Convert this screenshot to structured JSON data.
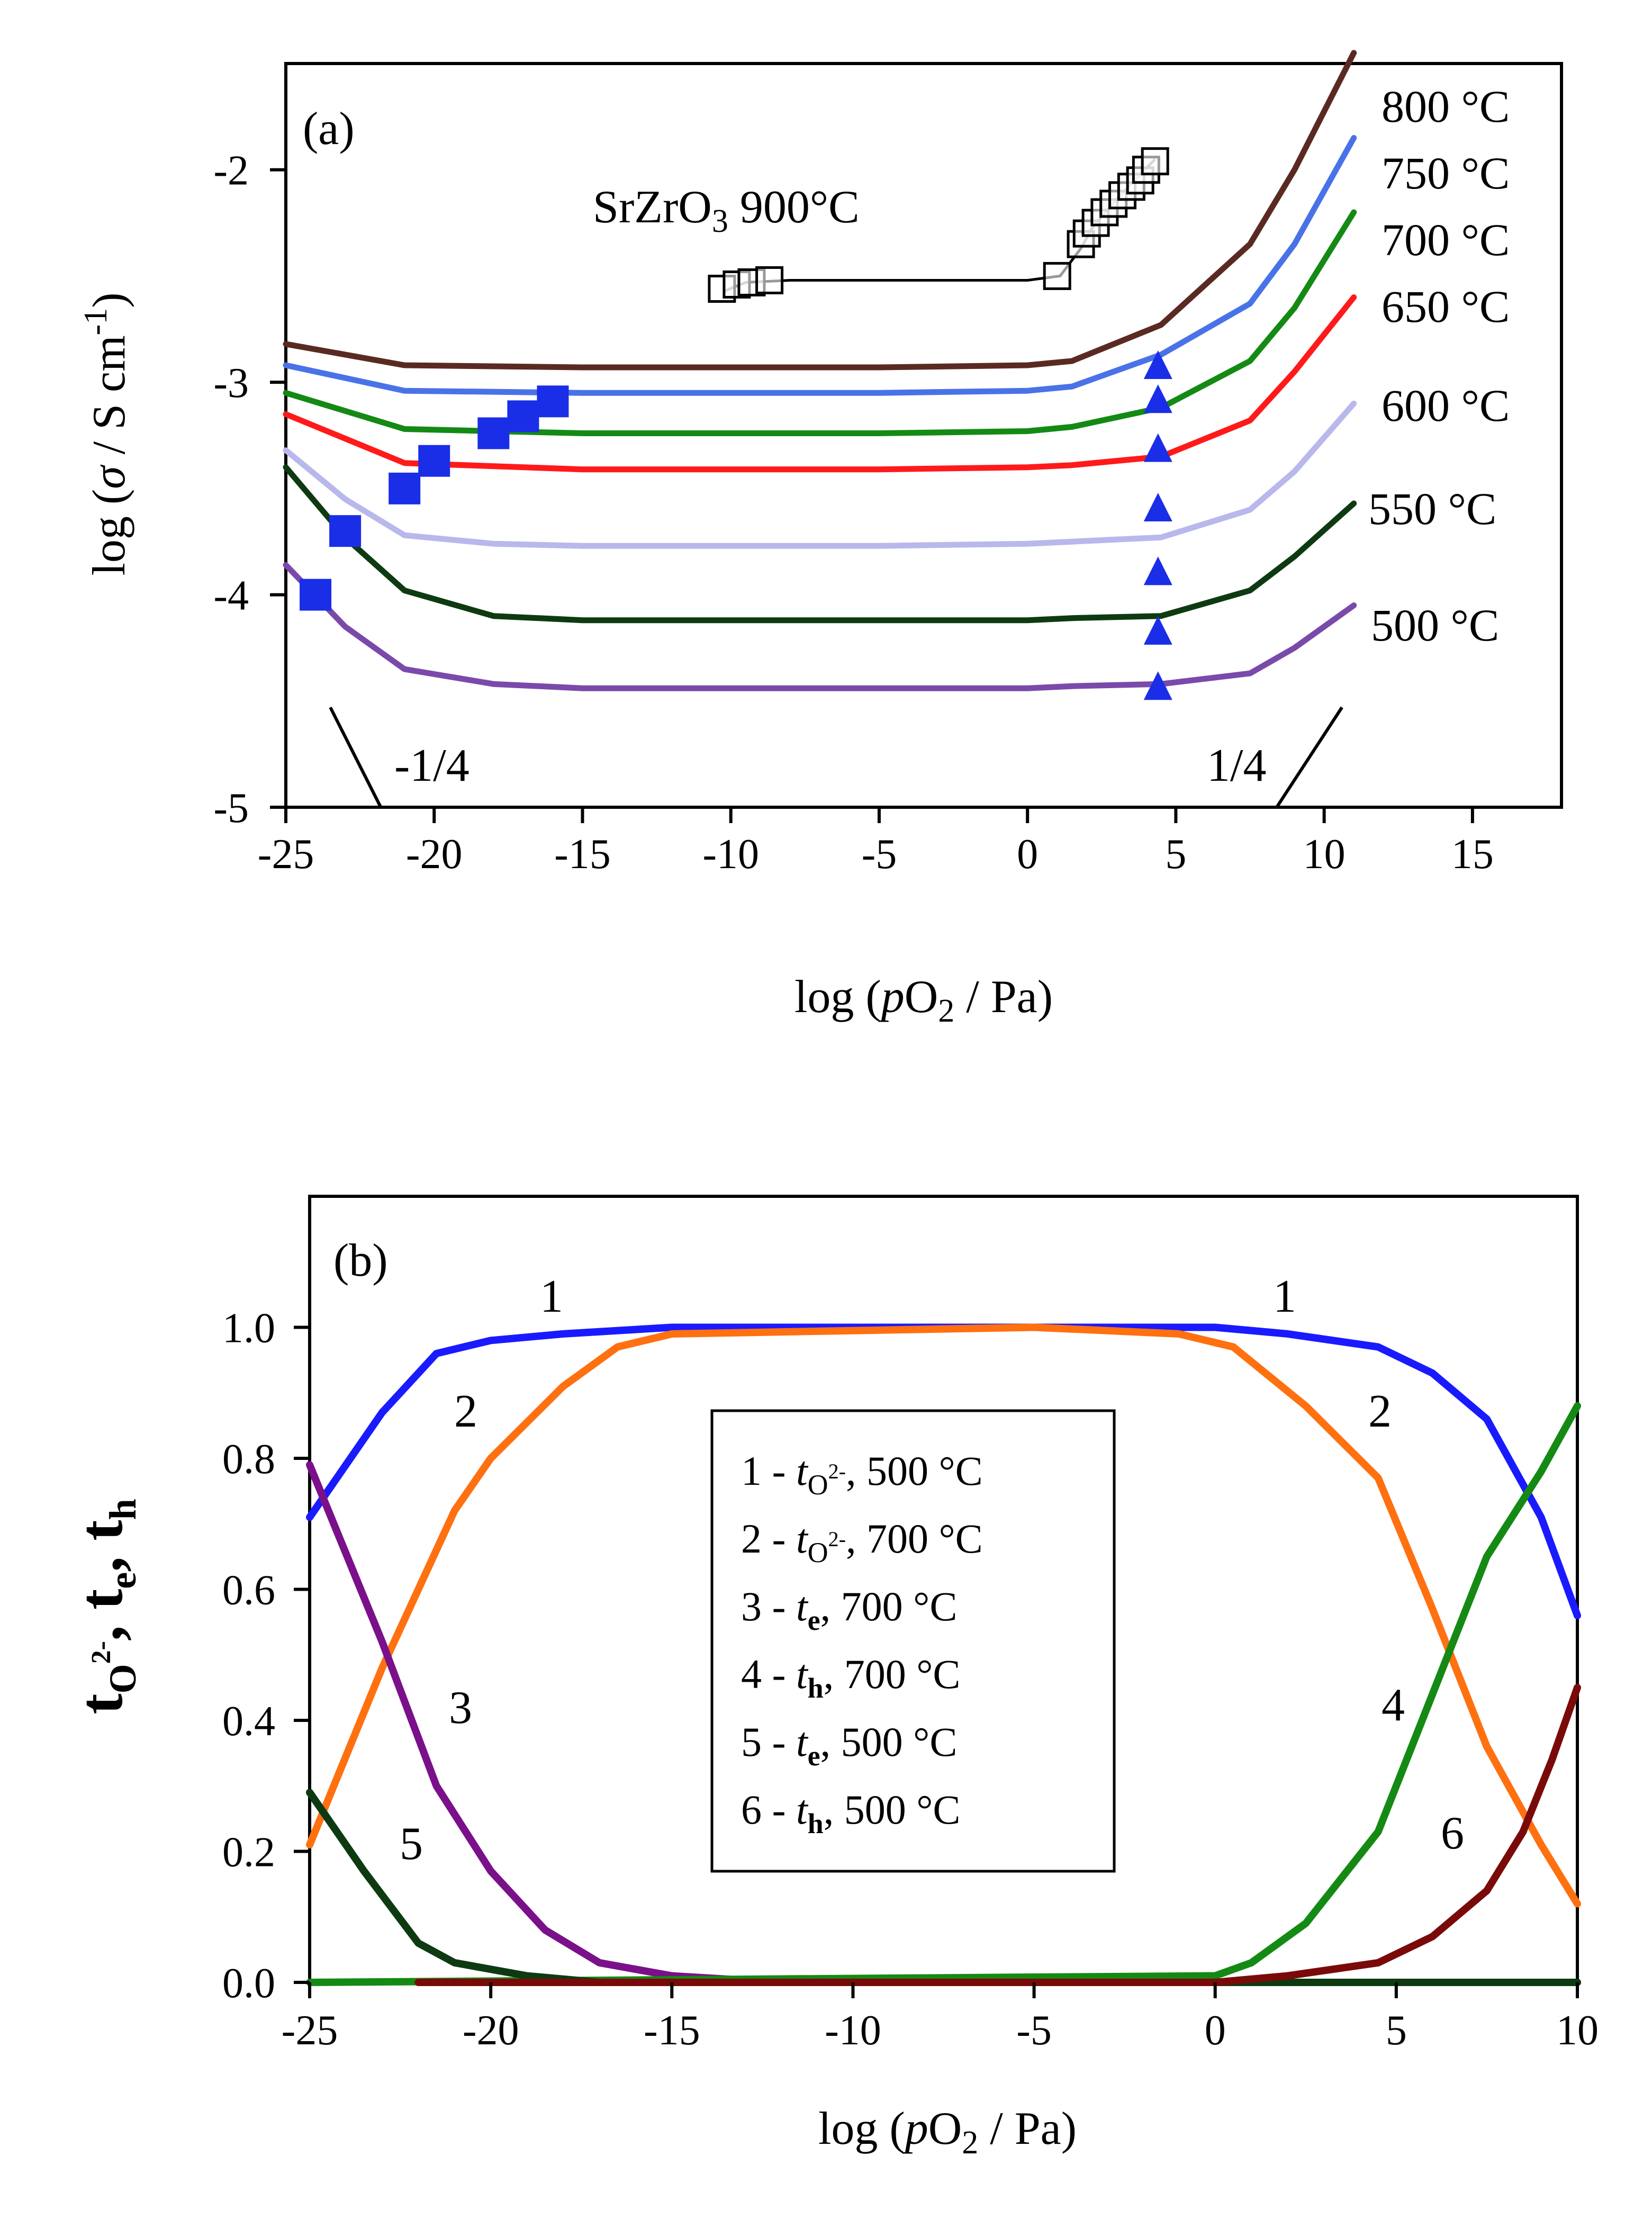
{
  "chart_data": [
    {
      "type": "line",
      "panel": "(a)",
      "xlabel": "log (pO2 / Pa)",
      "ylabel": "log (σ / S cm-1)",
      "xlim": [
        -25,
        18
      ],
      "ylim": [
        -5,
        -1.5
      ],
      "xticks": [
        -25,
        -20,
        -15,
        -10,
        -5,
        0,
        5,
        10,
        15
      ],
      "yticks": [
        -5,
        -4,
        -3,
        -2
      ],
      "series": [
        {
          "name": "800 °C",
          "color": "#5a2a22",
          "points": [
            [
              -25,
              -2.82
            ],
            [
              -21,
              -2.92
            ],
            [
              -15,
              -2.93
            ],
            [
              -5,
              -2.93
            ],
            [
              0,
              -2.92
            ],
            [
              1.5,
              -2.9
            ],
            [
              4.5,
              -2.73
            ],
            [
              7.5,
              -2.35
            ],
            [
              9,
              -2.0
            ],
            [
              11,
              -1.45
            ]
          ]
        },
        {
          "name": "750 °C",
          "color": "#4a72e8",
          "points": [
            [
              -25,
              -2.92
            ],
            [
              -21,
              -3.04
            ],
            [
              -15,
              -3.05
            ],
            [
              -5,
              -3.05
            ],
            [
              0,
              -3.04
            ],
            [
              1.5,
              -3.02
            ],
            [
              4.5,
              -2.87
            ],
            [
              7.5,
              -2.63
            ],
            [
              9,
              -2.35
            ],
            [
              11,
              -1.85
            ]
          ]
        },
        {
          "name": "700 °C",
          "color": "#148a14",
          "points": [
            [
              -25,
              -3.05
            ],
            [
              -21,
              -3.22
            ],
            [
              -15,
              -3.24
            ],
            [
              -5,
              -3.24
            ],
            [
              0,
              -3.23
            ],
            [
              1.5,
              -3.21
            ],
            [
              4.5,
              -3.12
            ],
            [
              7.5,
              -2.9
            ],
            [
              9,
              -2.65
            ],
            [
              11,
              -2.2
            ]
          ]
        },
        {
          "name": "650 °C",
          "color": "#ff1a1a",
          "points": [
            [
              -25,
              -3.15
            ],
            [
              -21,
              -3.38
            ],
            [
              -15,
              -3.41
            ],
            [
              -5,
              -3.41
            ],
            [
              0,
              -3.4
            ],
            [
              1.5,
              -3.39
            ],
            [
              4.5,
              -3.35
            ],
            [
              7.5,
              -3.18
            ],
            [
              9,
              -2.95
            ],
            [
              11,
              -2.6
            ]
          ]
        },
        {
          "name": "600 °C",
          "color": "#b8b8ec",
          "points": [
            [
              -25,
              -3.32
            ],
            [
              -23,
              -3.55
            ],
            [
              -21,
              -3.72
            ],
            [
              -18,
              -3.76
            ],
            [
              -15,
              -3.77
            ],
            [
              -5,
              -3.77
            ],
            [
              0,
              -3.76
            ],
            [
              1.5,
              -3.75
            ],
            [
              4.5,
              -3.73
            ],
            [
              7.5,
              -3.6
            ],
            [
              9,
              -3.42
            ],
            [
              11,
              -3.1
            ]
          ]
        },
        {
          "name": "550 °C",
          "color": "#0e3a12",
          "points": [
            [
              -25,
              -3.4
            ],
            [
              -23,
              -3.73
            ],
            [
              -21,
              -3.98
            ],
            [
              -18,
              -4.1
            ],
            [
              -15,
              -4.12
            ],
            [
              -5,
              -4.12
            ],
            [
              0,
              -4.12
            ],
            [
              1.5,
              -4.11
            ],
            [
              4.5,
              -4.1
            ],
            [
              7.5,
              -3.98
            ],
            [
              9,
              -3.82
            ],
            [
              11,
              -3.57
            ]
          ]
        },
        {
          "name": "500 °C",
          "color": "#7a4aaa",
          "points": [
            [
              -25,
              -3.86
            ],
            [
              -23,
              -4.15
            ],
            [
              -21,
              -4.35
            ],
            [
              -18,
              -4.42
            ],
            [
              -15,
              -4.44
            ],
            [
              -5,
              -4.44
            ],
            [
              0,
              -4.44
            ],
            [
              1.5,
              -4.43
            ],
            [
              4.5,
              -4.42
            ],
            [
              7.5,
              -4.37
            ],
            [
              9,
              -4.25
            ],
            [
              11,
              -4.05
            ]
          ]
        }
      ],
      "annotations": {
        "srzro3_label": "SrZrO3 900°C",
        "srzro3_points": [
          [
            -10.3,
            -2.56
          ],
          [
            -9.8,
            -2.54
          ],
          [
            -9.3,
            -2.53
          ],
          [
            -8.7,
            -2.52
          ],
          [
            1,
            -2.5
          ],
          [
            1.8,
            -2.35
          ],
          [
            2.0,
            -2.3
          ],
          [
            2.3,
            -2.25
          ],
          [
            2.6,
            -2.2
          ],
          [
            2.9,
            -2.16
          ],
          [
            3.2,
            -2.12
          ],
          [
            3.5,
            -2.08
          ],
          [
            3.8,
            -2.05
          ],
          [
            4.0,
            -2.0
          ],
          [
            4.3,
            -1.96
          ]
        ],
        "srzro3_line": [
          [
            -10.2,
            -2.57
          ],
          [
            -9.5,
            -2.53
          ],
          [
            -8,
            -2.52
          ],
          [
            0,
            -2.52
          ],
          [
            1.1,
            -2.5
          ],
          [
            1.8,
            -2.37
          ],
          [
            2.2,
            -2.27
          ],
          [
            3,
            -2.14
          ],
          [
            4.3,
            -1.95
          ]
        ],
        "squares": [
          [
            -24,
            -4.0
          ],
          [
            -23,
            -3.7
          ],
          [
            -21,
            -3.5
          ],
          [
            -20,
            -3.37
          ],
          [
            -18,
            -3.24
          ],
          [
            -17,
            -3.16
          ],
          [
            -16,
            -3.09
          ]
        ],
        "triangles": [
          [
            4.4,
            -2.93
          ],
          [
            4.4,
            -3.09
          ],
          [
            4.4,
            -3.32
          ],
          [
            4.4,
            -3.6
          ],
          [
            4.4,
            -3.9
          ],
          [
            4.4,
            -4.18
          ],
          [
            4.4,
            -4.44
          ]
        ],
        "slope_neg_label": "-1/4",
        "slope_pos_label": "1/4",
        "slope_neg": [
          [
            -23.5,
            -4.53
          ],
          [
            -21.8,
            -5.0
          ]
        ],
        "slope_pos": [
          [
            8.4,
            -5.0
          ],
          [
            10.6,
            -4.53
          ]
        ]
      }
    },
    {
      "type": "line",
      "panel": "(b)",
      "xlabel": "log (pO2 / Pa)",
      "ylabel": "tO2-, te, th",
      "xlim": [
        -25,
        10
      ],
      "ylim": [
        0,
        1.2
      ],
      "xticks": [
        -25,
        -20,
        -15,
        -10,
        -5,
        0,
        5,
        10
      ],
      "yticks": [
        0.0,
        0.2,
        0.4,
        0.6,
        0.8,
        1.0
      ],
      "ytick_labels": [
        "0.0",
        "0.2",
        "0.4",
        "0.6",
        "0.8",
        "1.0"
      ],
      "series": [
        {
          "name": "1",
          "color": "#1a1aff",
          "points": [
            [
              -25,
              0.71
            ],
            [
              -23,
              0.87
            ],
            [
              -21.5,
              0.96
            ],
            [
              -20,
              0.98
            ],
            [
              -18,
              0.99
            ],
            [
              -15,
              1.0
            ],
            [
              -5,
              1.0
            ],
            [
              0,
              1.0
            ],
            [
              2,
              0.99
            ],
            [
              4.5,
              0.97
            ],
            [
              6,
              0.93
            ],
            [
              7.5,
              0.86
            ],
            [
              9,
              0.71
            ],
            [
              10,
              0.56
            ]
          ]
        },
        {
          "name": "2",
          "color": "#ff7010",
          "points": [
            [
              -25,
              0.21
            ],
            [
              -23,
              0.48
            ],
            [
              -21,
              0.72
            ],
            [
              -20,
              0.8
            ],
            [
              -18,
              0.91
            ],
            [
              -16.5,
              0.97
            ],
            [
              -15,
              0.99
            ],
            [
              -5,
              1.0
            ],
            [
              -1,
              0.99
            ],
            [
              0.5,
              0.97
            ],
            [
              2.5,
              0.88
            ],
            [
              4.5,
              0.77
            ],
            [
              6,
              0.57
            ],
            [
              7.5,
              0.36
            ],
            [
              9,
              0.21
            ],
            [
              10,
              0.12
            ]
          ]
        },
        {
          "name": "3",
          "color": "#7a108a",
          "points": [
            [
              -25,
              0.79
            ],
            [
              -23,
              0.52
            ],
            [
              -21.5,
              0.3
            ],
            [
              -20,
              0.17
            ],
            [
              -18.5,
              0.08
            ],
            [
              -17,
              0.03
            ],
            [
              -15,
              0.01
            ],
            [
              -12,
              0.0
            ],
            [
              10,
              0.0
            ]
          ]
        },
        {
          "name": "4",
          "color": "#148a14",
          "points": [
            [
              -25,
              0.0
            ],
            [
              0,
              0.01
            ],
            [
              1,
              0.03
            ],
            [
              2.5,
              0.09
            ],
            [
              4.5,
              0.23
            ],
            [
              6,
              0.44
            ],
            [
              7.5,
              0.65
            ],
            [
              9,
              0.78
            ],
            [
              10,
              0.88
            ]
          ]
        },
        {
          "name": "5",
          "color": "#0e3a12",
          "points": [
            [
              -25,
              0.29
            ],
            [
              -23.5,
              0.17
            ],
            [
              -22,
              0.06
            ],
            [
              -21,
              0.03
            ],
            [
              -19,
              0.01
            ],
            [
              -17,
              0.0
            ],
            [
              10,
              0.0
            ]
          ]
        },
        {
          "name": "6",
          "color": "#7a0a0a",
          "points": [
            [
              -22,
              0.0
            ],
            [
              0,
              0.0
            ],
            [
              2,
              0.01
            ],
            [
              4.5,
              0.03
            ],
            [
              6,
              0.07
            ],
            [
              7.5,
              0.14
            ],
            [
              8.5,
              0.23
            ],
            [
              9.3,
              0.34
            ],
            [
              10,
              0.45
            ]
          ]
        }
      ],
      "curve_labels": [
        "1",
        "1",
        "2",
        "2",
        "3",
        "4",
        "5",
        "6"
      ],
      "legend": [
        {
          "num": "1 - ",
          "sym": "t",
          "sub": "O",
          "sup": "2-",
          "rest": ", 500 °C"
        },
        {
          "num": "2 - ",
          "sym": "t",
          "sub": "O",
          "sup": "2-",
          "rest": ", 700 °C"
        },
        {
          "num": "3 - ",
          "sym": "t",
          "sub": "e",
          "sup": "",
          "rest": ", 700 °C"
        },
        {
          "num": "4 - ",
          "sym": "t",
          "sub": "h",
          "sup": "",
          "rest": ", 700 °C"
        },
        {
          "num": "5 - ",
          "sym": "t",
          "sub": "e",
          "sup": "",
          "rest": ", 500 °C"
        },
        {
          "num": "6 - ",
          "sym": "t",
          "sub": "h",
          "sup": "",
          "rest": ", 500 °C"
        }
      ]
    }
  ]
}
